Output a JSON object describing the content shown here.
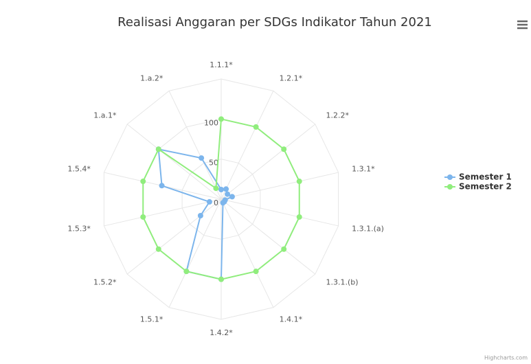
{
  "chart_data": {
    "type": "radar",
    "title": "Realisasi Anggaran per SDGs Indikator Tahun 2021",
    "categories": [
      "1.1.1*",
      "1.2.1*",
      "1.2.2*",
      "1.3.1*",
      "1.3.1.(a)",
      "1.3.1.(b)",
      "1.4.1*",
      "1.4.2*",
      "1.5.1*",
      "1.5.2*",
      "1.5.3*",
      "1.5.4*",
      "1.a.1*",
      "1.a.2*"
    ],
    "series": [
      {
        "name": "Semester 1",
        "color": "#7cb5ec",
        "values": [
          12,
          14,
          10,
          14,
          5,
          5,
          5,
          100,
          100,
          33,
          15,
          76,
          100,
          57
        ]
      },
      {
        "name": "Semester 2",
        "color": "#90ed7d",
        "values": [
          100,
          100,
          100,
          100,
          100,
          100,
          100,
          100,
          100,
          100,
          100,
          100,
          100,
          15
        ]
      }
    ],
    "ylim": [
      0,
      150
    ],
    "yticks": [
      0,
      50,
      100
    ],
    "grid": true,
    "legend": "right",
    "credits": "Highcharts.com"
  }
}
